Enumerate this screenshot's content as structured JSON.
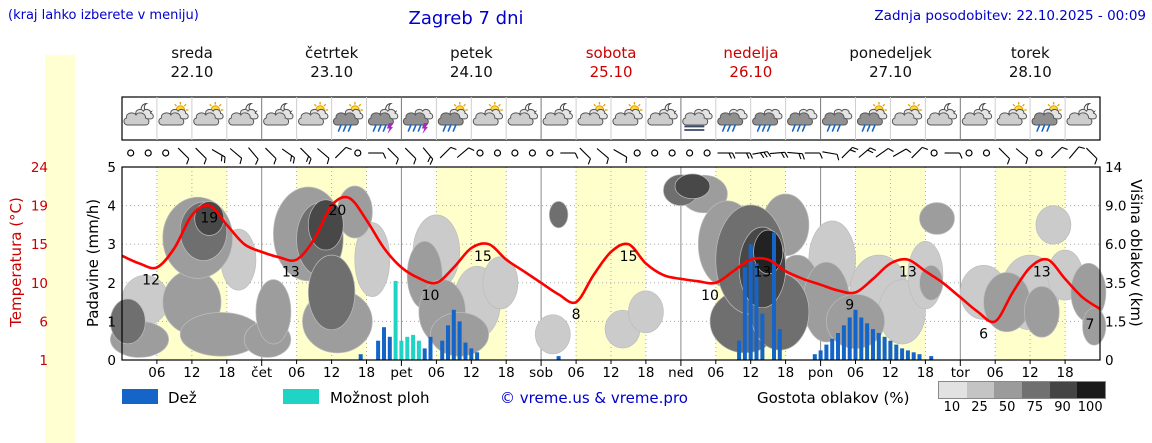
{
  "header": {
    "hint": "(kraj lahko izberete v meniju)",
    "title": "Zagreb 7 dni",
    "updated": "Zadnja posodobitev: 22.10.2025 - 00:09"
  },
  "axes": {
    "temp_label": "Temperatura (°C)",
    "precip_label": "Padavine (mm/h)",
    "cloud_label": "Višina oblakov (km)",
    "temp_ticks": [
      24,
      19,
      15,
      10,
      6,
      1
    ],
    "precip_ticks": [
      5,
      4,
      3,
      2,
      1,
      0
    ],
    "cloud_ticks": [
      "14",
      "9.0",
      "6.0",
      "3.5",
      "1.5",
      "0"
    ],
    "time_ticks": [
      "06",
      "12",
      "18"
    ],
    "day_abbrevs": [
      "čet",
      "pet",
      "sob",
      "ned",
      "pon",
      "tor"
    ]
  },
  "days": [
    {
      "name": "sreda",
      "date": "22.10"
    },
    {
      "name": "četrtek",
      "date": "23.10"
    },
    {
      "name": "petek",
      "date": "24.10"
    },
    {
      "name": "sobota",
      "date": "25.10",
      "color": "#cc0000"
    },
    {
      "name": "nedelja",
      "date": "26.10",
      "color": "#cc0000"
    },
    {
      "name": "ponedeljek",
      "date": "27.10"
    },
    {
      "name": "torek",
      "date": "28.10"
    }
  ],
  "legend": {
    "rain": "Dež",
    "showers": "Možnost ploh",
    "copyright": "© vreme.us & vreme.pro",
    "cloud_density": "Gostota oblakov (%)",
    "density_ticks": [
      "10",
      "25",
      "50",
      "75",
      "90",
      "100"
    ]
  },
  "colors": {
    "accent_blue": "#0000cd",
    "accent_red": "#cc0000",
    "temperature": "#ff0000",
    "rain": "#1565c8",
    "showers": "#1fd4c4",
    "day_band": "#ffffcc",
    "left_band": "#ffffd2",
    "density_scale": [
      "#e2e2e2",
      "#c4c4c4",
      "#9b9b9b",
      "#707070",
      "#454545",
      "#1a1a1a"
    ],
    "cloud_density": {
      "10": "#e6e6e6",
      "25": "#cbcbcb",
      "50": "#9d9d9d",
      "75": "#6f6f6f",
      "90": "#484848",
      "100": "#222222"
    }
  },
  "chart_data": {
    "type": "meteogram",
    "location": "Zagreb",
    "days": 7,
    "x_axis": {
      "unit": "hour",
      "range": [
        0,
        168
      ],
      "day_starts": [
        0,
        24,
        48,
        72,
        96,
        120,
        144
      ],
      "daylight_band_hours": [
        6,
        18
      ]
    },
    "temperature": {
      "unit": "°C",
      "axis_values_at_gridlines": [
        1,
        6,
        10,
        15,
        19,
        24
      ],
      "points": [
        [
          0,
          13.5
        ],
        [
          3,
          12.5
        ],
        [
          6,
          12
        ],
        [
          9,
          14.5
        ],
        [
          12,
          18
        ],
        [
          15,
          19
        ],
        [
          18,
          17
        ],
        [
          21,
          15
        ],
        [
          24,
          14
        ],
        [
          27,
          13.3
        ],
        [
          30,
          13
        ],
        [
          33,
          15.5
        ],
        [
          36,
          19
        ],
        [
          39,
          20
        ],
        [
          42,
          17.5
        ],
        [
          45,
          14.5
        ],
        [
          48,
          12
        ],
        [
          51,
          10.6
        ],
        [
          54,
          10
        ],
        [
          57,
          12
        ],
        [
          60,
          14.5
        ],
        [
          63,
          15
        ],
        [
          66,
          13
        ],
        [
          69,
          11.5
        ],
        [
          72,
          10
        ],
        [
          75,
          8.8
        ],
        [
          78,
          8
        ],
        [
          81,
          11
        ],
        [
          84,
          14
        ],
        [
          87,
          15
        ],
        [
          90,
          12.5
        ],
        [
          93,
          11
        ],
        [
          96,
          10.5
        ],
        [
          99,
          10.2
        ],
        [
          102,
          10
        ],
        [
          105,
          11.5
        ],
        [
          108,
          13
        ],
        [
          111,
          13
        ],
        [
          114,
          11.5
        ],
        [
          117,
          10.5
        ],
        [
          120,
          9.8
        ],
        [
          123,
          9.2
        ],
        [
          126,
          9
        ],
        [
          129,
          10.5
        ],
        [
          132,
          12.5
        ],
        [
          135,
          13
        ],
        [
          138,
          11.5
        ],
        [
          141,
          10
        ],
        [
          144,
          8.5
        ],
        [
          147,
          7
        ],
        [
          150,
          6
        ],
        [
          153,
          9
        ],
        [
          156,
          12
        ],
        [
          159,
          13
        ],
        [
          162,
          10.5
        ],
        [
          165,
          8.5
        ],
        [
          168,
          7.3
        ]
      ],
      "labels": [
        [
          5,
          12
        ],
        [
          15,
          19
        ],
        [
          29,
          13
        ],
        [
          37,
          20
        ],
        [
          53,
          10
        ],
        [
          62,
          15
        ],
        [
          78,
          8
        ],
        [
          87,
          15
        ],
        [
          101,
          10
        ],
        [
          110,
          13
        ],
        [
          125,
          9
        ],
        [
          135,
          13
        ],
        [
          148,
          6
        ],
        [
          158,
          13
        ],
        [
          167,
          7
        ]
      ]
    },
    "rain_bars": [
      [
        41,
        0.15
      ],
      [
        44,
        0.5
      ],
      [
        45,
        0.85
      ],
      [
        46,
        0.6
      ],
      [
        52,
        0.3
      ],
      [
        53,
        0.6
      ],
      [
        55,
        0.5
      ],
      [
        56,
        0.9
      ],
      [
        57,
        1.3
      ],
      [
        58,
        1.0
      ],
      [
        59,
        0.45
      ],
      [
        60,
        0.3
      ],
      [
        61,
        0.2
      ],
      [
        75,
        0.1
      ],
      [
        106,
        0.5
      ],
      [
        107,
        2.4
      ],
      [
        108,
        3.0
      ],
      [
        109,
        2.5
      ],
      [
        110,
        1.2
      ],
      [
        112,
        3.3
      ],
      [
        113,
        0.8
      ],
      [
        119,
        0.15
      ],
      [
        120,
        0.25
      ],
      [
        121,
        0.4
      ],
      [
        122,
        0.55
      ],
      [
        123,
        0.7
      ],
      [
        124,
        0.9
      ],
      [
        125,
        1.1
      ],
      [
        126,
        1.3
      ],
      [
        127,
        1.1
      ],
      [
        128,
        0.95
      ],
      [
        129,
        0.8
      ],
      [
        130,
        0.7
      ],
      [
        131,
        0.6
      ],
      [
        132,
        0.5
      ],
      [
        133,
        0.4
      ],
      [
        134,
        0.3
      ],
      [
        135,
        0.25
      ],
      [
        136,
        0.2
      ],
      [
        137,
        0.15
      ],
      [
        139,
        0.1
      ]
    ],
    "shower_bars": [
      [
        47,
        2.05
      ],
      [
        48,
        0.5
      ],
      [
        49,
        0.6
      ],
      [
        50,
        0.65
      ],
      [
        51,
        0.5
      ]
    ],
    "cloud_layers": [
      [
        1,
        1.5,
        3,
        1.0,
        75
      ],
      [
        3,
        0.8,
        5,
        0.7,
        50
      ],
      [
        4,
        2.6,
        4,
        1.3,
        25
      ],
      [
        12,
        2.5,
        5,
        1.6,
        50
      ],
      [
        13,
        6.5,
        6,
        3.0,
        50
      ],
      [
        14,
        7.0,
        4,
        2.2,
        75
      ],
      [
        15,
        8.0,
        2.5,
        1.4,
        90
      ],
      [
        17,
        1.0,
        7,
        0.9,
        50
      ],
      [
        20,
        5.0,
        3,
        2.0,
        25
      ],
      [
        25,
        0.8,
        4,
        0.7,
        50
      ],
      [
        26,
        2.0,
        3,
        1.5,
        50
      ],
      [
        32,
        6.8,
        6,
        3.6,
        50
      ],
      [
        34,
        6.4,
        4,
        2.6,
        75
      ],
      [
        35,
        7.5,
        3,
        2.0,
        90
      ],
      [
        36,
        3.0,
        4,
        2.0,
        75
      ],
      [
        37,
        1.5,
        6,
        1.4,
        50
      ],
      [
        40,
        8.5,
        3,
        2.4,
        50
      ],
      [
        43,
        5.0,
        3,
        2.4,
        25
      ],
      [
        52,
        4.0,
        3,
        2.0,
        50
      ],
      [
        54,
        5.5,
        4,
        2.5,
        25
      ],
      [
        55,
        2.0,
        4,
        1.5,
        50
      ],
      [
        58,
        1.0,
        5,
        0.9,
        50
      ],
      [
        61,
        2.5,
        4,
        1.8,
        25
      ],
      [
        65,
        3.5,
        3,
        1.5,
        25
      ],
      [
        74,
        1.0,
        3,
        0.8,
        25
      ],
      [
        75,
        8.3,
        1.6,
        1.1,
        75
      ],
      [
        86,
        1.2,
        3,
        0.8,
        25
      ],
      [
        90,
        2.0,
        3,
        1.0,
        25
      ],
      [
        96,
        11,
        3,
        2,
        75
      ],
      [
        98,
        11.5,
        3,
        1.6,
        90
      ],
      [
        100,
        10.5,
        4,
        2.2,
        50
      ],
      [
        104,
        6.0,
        5,
        3.0,
        50
      ],
      [
        107,
        1.5,
        6,
        1.4,
        75
      ],
      [
        108,
        5.0,
        6,
        3.5,
        75
      ],
      [
        110,
        4.5,
        4,
        2.5,
        90
      ],
      [
        111,
        5.5,
        2.5,
        1.5,
        100
      ],
      [
        113,
        2.0,
        5,
        1.8,
        75
      ],
      [
        114,
        7.5,
        4,
        2.5,
        50
      ],
      [
        116,
        3.0,
        4,
        2.0,
        50
      ],
      [
        121,
        2.5,
        4,
        2.0,
        50
      ],
      [
        122,
        5.0,
        4,
        2.5,
        25
      ],
      [
        126,
        1.5,
        5,
        1.2,
        50
      ],
      [
        130,
        3.0,
        5,
        2.0,
        25
      ],
      [
        134,
        2.0,
        4,
        1.5,
        25
      ],
      [
        138,
        4.0,
        3,
        2.0,
        25
      ],
      [
        139,
        3.5,
        2,
        1.0,
        50
      ],
      [
        140,
        8.0,
        3,
        1.3,
        50
      ],
      [
        148,
        3.0,
        4,
        1.5,
        25
      ],
      [
        152,
        2.5,
        4,
        1.5,
        50
      ],
      [
        156,
        3.0,
        5,
        2.0,
        25
      ],
      [
        158,
        2.0,
        3,
        1.2,
        50
      ],
      [
        160,
        7.5,
        3,
        1.5,
        25
      ],
      [
        162,
        4.0,
        3,
        1.5,
        25
      ],
      [
        166,
        3.0,
        3,
        1.6,
        50
      ],
      [
        167,
        1.3,
        2,
        0.8,
        50
      ]
    ],
    "weather_icons": [
      [
        "moon",
        "cloud"
      ],
      [
        "sun",
        "cloud"
      ],
      [
        "sun",
        "cloud"
      ],
      [
        "moon",
        "cloud"
      ],
      [
        "moon",
        "cloud"
      ],
      [
        "sun",
        "cloud"
      ],
      [
        "sun",
        "cloud",
        "rain"
      ],
      [
        "moon",
        "cloud",
        "rain",
        "lightning"
      ],
      [
        "cloud",
        "rain",
        "lightning"
      ],
      [
        "sun",
        "cloud",
        "rain"
      ],
      [
        "sun",
        "cloud"
      ],
      [
        "moon",
        "cloud"
      ],
      [
        "moon",
        "cloud"
      ],
      [
        "sun",
        "cloud"
      ],
      [
        "sun",
        "cloud"
      ],
      [
        "moon",
        "cloud"
      ],
      [
        "fog",
        "cloud"
      ],
      [
        "cloud",
        "rain"
      ],
      [
        "cloud",
        "rain"
      ],
      [
        "cloud",
        "rain"
      ],
      [
        "cloud",
        "rain"
      ],
      [
        "sun",
        "cloud",
        "rain"
      ],
      [
        "sun",
        "cloud"
      ],
      [
        "moon",
        "cloud"
      ],
      [
        "moon",
        "cloud"
      ],
      [
        "sun",
        "cloud"
      ],
      [
        "sun",
        "cloud",
        "rain"
      ],
      [
        "moon",
        "cloud"
      ]
    ],
    "wind": [
      "o",
      "o",
      "o",
      "b135-1",
      "b135-1",
      "b120-2",
      "b130-1",
      "b140-1",
      "b135-1",
      "b125-2",
      "b135-2",
      "b130-1",
      "b45-1",
      "o",
      "b90-1",
      "b135-1",
      "b135-1",
      "b140-2",
      "b45-1",
      "b50-1",
      "o",
      "o",
      "o",
      "o",
      "o",
      "b90-1",
      "b135-1",
      "b130-1",
      "b120-1",
      "o",
      "o",
      "o",
      "o",
      "o",
      "b90-2",
      "b90-2",
      "b80-3",
      "b85-2",
      "b95-2",
      "b90-1",
      "b100-1",
      "b45-2",
      "b50-2",
      "b55-1",
      "b60-1",
      "b45-1",
      "o",
      "b90-1",
      "o",
      "o",
      "b135-1",
      "b130-1",
      "o",
      "b45-1",
      "b40-1",
      "b135-1"
    ],
    "cloud_height_axis_values_at_gridlines": [
      0,
      1.5,
      3.5,
      6,
      9,
      14
    ]
  }
}
